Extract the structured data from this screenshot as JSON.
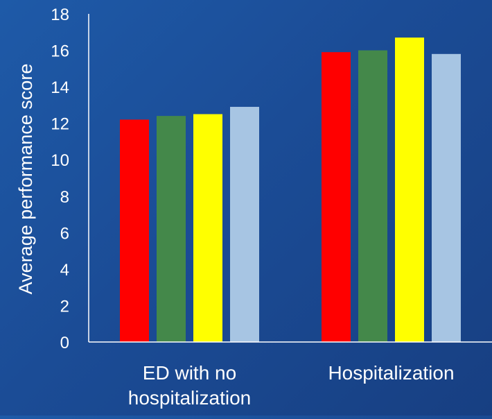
{
  "chart_data": {
    "type": "bar",
    "title": "",
    "xlabel": "",
    "ylabel": "Average performance score",
    "ylim": [
      0,
      18
    ],
    "yticks": [
      0,
      2,
      4,
      6,
      8,
      10,
      12,
      14,
      16,
      18
    ],
    "grid": false,
    "legend": "none",
    "categories": [
      "ED with no hospitalization",
      "Hospitalization"
    ],
    "category_lines": [
      [
        "ED with no",
        "hospitalization"
      ],
      [
        "Hospitalization"
      ]
    ],
    "series": [
      {
        "color": "#ff0000",
        "values": [
          12.2,
          15.9
        ]
      },
      {
        "color": "#44884a",
        "values": [
          12.4,
          16.0
        ]
      },
      {
        "color": "#ffff00",
        "values": [
          12.5,
          16.7
        ]
      },
      {
        "color": "#a7c5e3",
        "values": [
          12.9,
          15.8
        ]
      }
    ]
  },
  "colors": {
    "background": "#1b4c96",
    "axis": "#ffffff",
    "text": "#ffffff"
  }
}
